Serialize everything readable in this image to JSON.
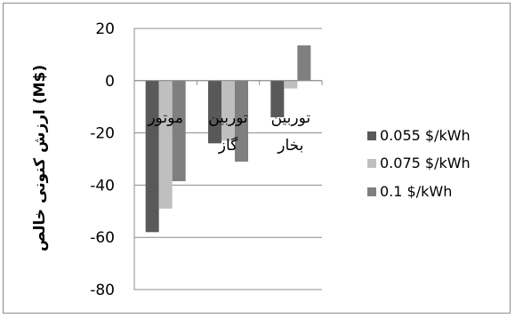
{
  "chart_data": {
    "type": "bar",
    "categories": [
      "موتور",
      "توربین گاز",
      "توربین بخار"
    ],
    "category_lines": [
      [
        "موتور"
      ],
      [
        "توربین",
        "گاز"
      ],
      [
        "توربین",
        "بخار"
      ]
    ],
    "series": [
      {
        "name": "0.055 $/kWh",
        "color": "#595959",
        "values": [
          -58,
          -24,
          -14
        ]
      },
      {
        "name": "0.075 $/kWh",
        "color": "#bfbfbf",
        "values": [
          -49,
          -23,
          -3
        ]
      },
      {
        "name": "0.1 $/kWh",
        "color": "#7f7f7f",
        "values": [
          -38.5,
          -31,
          13.5
        ]
      }
    ],
    "ylabel": "ارزش کنونی خالص (M$)",
    "ylim": [
      -80,
      20
    ],
    "yticks": [
      20,
      0,
      -20,
      -40,
      -60,
      -80
    ],
    "ytick_labels": [
      "20",
      "0",
      "-20",
      "-40",
      "-60",
      "-80"
    ],
    "grid": true,
    "legend_position": "right"
  }
}
